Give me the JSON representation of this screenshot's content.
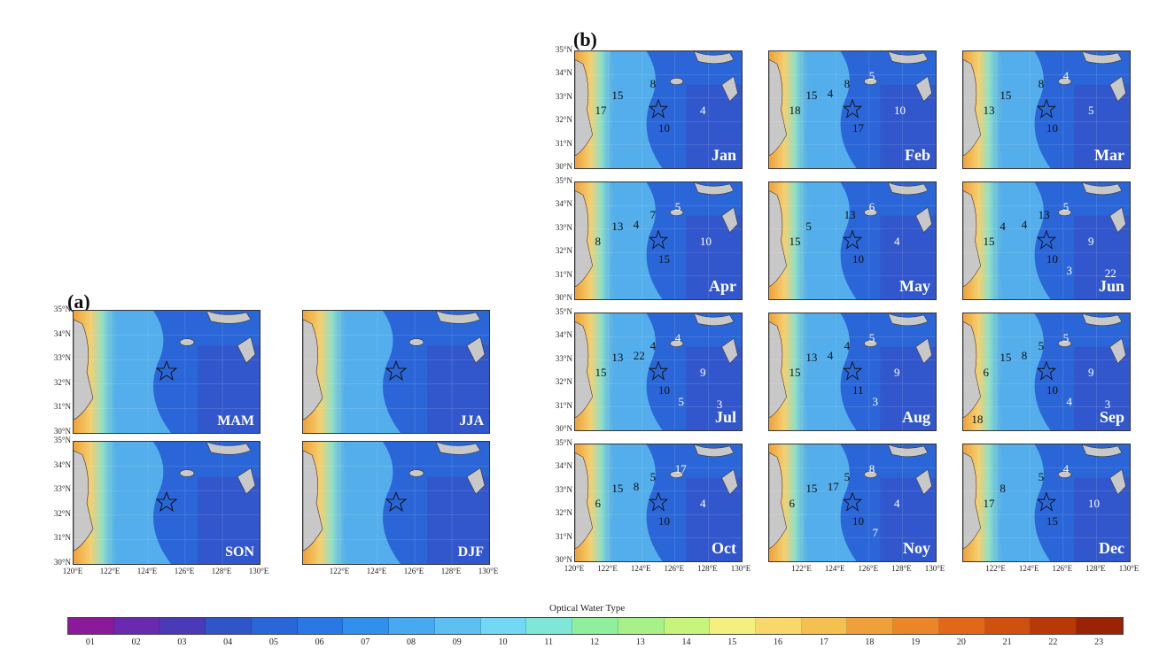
{
  "labels": {
    "a": "(a)",
    "b": "(b)"
  },
  "seasonal": [
    {
      "name": "MAM"
    },
    {
      "name": "JJA"
    },
    {
      "name": "SON"
    },
    {
      "name": "DJF"
    }
  ],
  "monthly": [
    {
      "name": "Jan",
      "nums": [
        "8",
        "15",
        "17",
        "10",
        "4"
      ]
    },
    {
      "name": "Feb",
      "nums": [
        "8",
        "15",
        "18",
        "17",
        "10",
        "5",
        "4"
      ]
    },
    {
      "name": "Mar",
      "nums": [
        "8",
        "15",
        "13",
        "10",
        "5",
        "4"
      ]
    },
    {
      "name": "Apr",
      "nums": [
        "7",
        "13",
        "8",
        "15",
        "10",
        "5",
        "4"
      ]
    },
    {
      "name": "May",
      "nums": [
        "13",
        "5",
        "15",
        "10",
        "4",
        "6"
      ]
    },
    {
      "name": "Jun",
      "nums": [
        "13",
        "4",
        "15",
        "10",
        "9",
        "5",
        "4",
        "3",
        "22"
      ]
    },
    {
      "name": "Jul",
      "nums": [
        "4",
        "13",
        "15",
        "10",
        "9",
        "4",
        "22",
        "5",
        "3"
      ]
    },
    {
      "name": "Aug",
      "nums": [
        "4",
        "13",
        "15",
        "11",
        "9",
        "5",
        "4",
        "3"
      ]
    },
    {
      "name": "Sep",
      "nums": [
        "5",
        "15",
        "6",
        "10",
        "9",
        "5",
        "8",
        "4",
        "3",
        "18"
      ]
    },
    {
      "name": "Oct",
      "nums": [
        "5",
        "15",
        "6",
        "10",
        "4",
        "17",
        "8"
      ]
    },
    {
      "name": "Noy",
      "nums": [
        "5",
        "15",
        "6",
        "10",
        "4",
        "8",
        "17",
        "7"
      ]
    },
    {
      "name": "Dec",
      "nums": [
        "5",
        "8",
        "17",
        "15",
        "10",
        "4"
      ]
    }
  ],
  "lat_ticks": [
    "35°N",
    "34°N",
    "33°N",
    "32°N",
    "31°N",
    "30°N"
  ],
  "lon_ticks_full": [
    "120°E",
    "122°E",
    "124°E",
    "126°E",
    "128°E",
    "130°E"
  ],
  "lon_ticks_short": [
    "122°E",
    "124°E",
    "126°E",
    "128°E",
    "130°E"
  ],
  "colorbar": {
    "title": "Optical Water Type",
    "classes": [
      "01",
      "02",
      "03",
      "04",
      "05",
      "06",
      "07",
      "08",
      "09",
      "10",
      "11",
      "12",
      "13",
      "14",
      "15",
      "16",
      "17",
      "18",
      "19",
      "20",
      "21",
      "22",
      "23"
    ],
    "colors": [
      "#8a1a9a",
      "#6a2ab0",
      "#4a3ab8",
      "#2f55c8",
      "#2a66d8",
      "#2a78e6",
      "#2f90ee",
      "#48a8f0",
      "#5ec0f0",
      "#72d8f4",
      "#80e6d8",
      "#90ee9c",
      "#a8f08a",
      "#c8f47c",
      "#f4f080",
      "#f8d86a",
      "#f4c050",
      "#f0a038",
      "#ea8628",
      "#e06818",
      "#d05010",
      "#b83808",
      "#9a2206"
    ]
  }
}
